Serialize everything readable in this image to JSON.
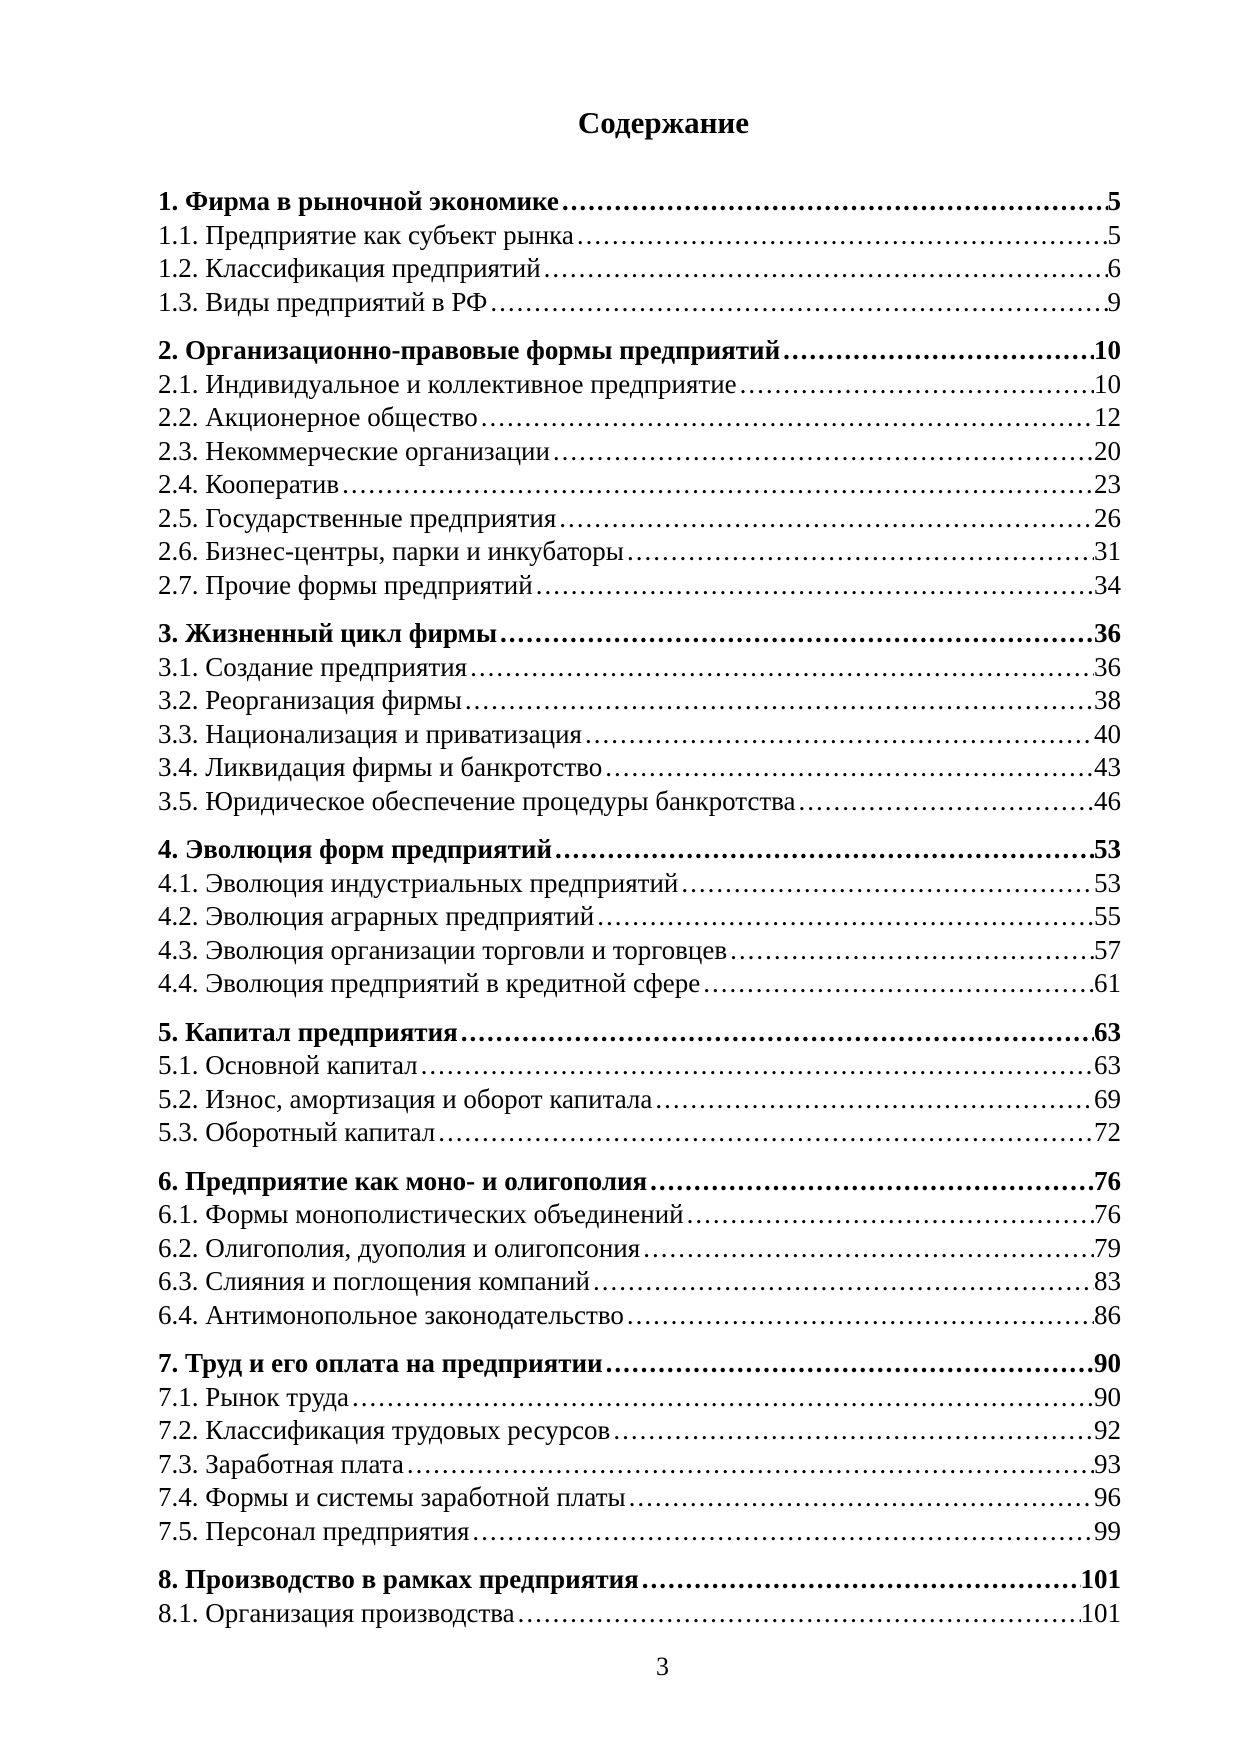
{
  "page": {
    "title": "Содержание",
    "footer_page_number": "3"
  },
  "toc": {
    "sections": [
      {
        "label": "1. Фирма в рыночной экономике",
        "page": "5",
        "items": [
          {
            "label": "1.1. Предприятие как субъект рынка",
            "page": "5"
          },
          {
            "label": "1.2. Классификация предприятий",
            "page": "6"
          },
          {
            "label": "1.3. Виды предприятий в РФ",
            "page": "9"
          }
        ]
      },
      {
        "label": "2. Организационно-правовые формы предприятий",
        "page": "10",
        "items": [
          {
            "label": "2.1. Индивидуальное и коллективное предприятие",
            "page": "10"
          },
          {
            "label": "2.2. Акционерное общество",
            "page": "12"
          },
          {
            "label": "2.3. Некоммерческие организации",
            "page": "20"
          },
          {
            "label": "2.4. Кооператив",
            "page": "23"
          },
          {
            "label": "2.5. Государственные предприятия",
            "page": "26"
          },
          {
            "label": "2.6. Бизнес-центры, парки и инкубаторы",
            "page": "31"
          },
          {
            "label": "2.7. Прочие формы предприятий",
            "page": "34"
          }
        ]
      },
      {
        "label": "3. Жизненный цикл фирмы",
        "page": "36",
        "items": [
          {
            "label": "3.1. Создание предприятия",
            "page": "36"
          },
          {
            "label": "3.2. Реорганизация фирмы",
            "page": "38"
          },
          {
            "label": "3.3. Национализация и приватизация",
            "page": "40"
          },
          {
            "label": "3.4. Ликвидация фирмы и банкротство",
            "page": "43"
          },
          {
            "label": "3.5. Юридическое обеспечение процедуры банкротства",
            "page": "46"
          }
        ]
      },
      {
        "label": "4. Эволюция форм предприятий",
        "page": "53",
        "items": [
          {
            "label": "4.1. Эволюция индустриальных предприятий",
            "page": "53"
          },
          {
            "label": "4.2. Эволюция аграрных предприятий",
            "page": "55"
          },
          {
            "label": "4.3. Эволюция организации торговли и торговцев",
            "page": "57"
          },
          {
            "label": "4.4. Эволюция предприятий в кредитной сфере",
            "page": "61"
          }
        ]
      },
      {
        "label": "5. Капитал предприятия",
        "page": "63",
        "items": [
          {
            "label": "5.1. Основной капитал",
            "page": "63"
          },
          {
            "label": "5.2. Износ, амортизация и оборот капитала",
            "page": "69"
          },
          {
            "label": "5.3. Оборотный капитал",
            "page": "72"
          }
        ]
      },
      {
        "label": "6. Предприятие как моно- и олигополия",
        "page": "76",
        "items": [
          {
            "label": "6.1. Формы монополистических объединений",
            "page": "76"
          },
          {
            "label": "6.2. Олигополия, дуополия и олигопсония",
            "page": "79"
          },
          {
            "label": "6.3. Слияния и поглощения компаний",
            "page": "83"
          },
          {
            "label": "6.4. Антимонопольное законодательство",
            "page": "86"
          }
        ]
      },
      {
        "label": "7. Труд и его оплата на предприятии",
        "page": "90",
        "items": [
          {
            "label": "7.1. Рынок труда",
            "page": "90"
          },
          {
            "label": "7.2. Классификация трудовых ресурсов",
            "page": "92"
          },
          {
            "label": "7.3. Заработная плата",
            "page": "93"
          },
          {
            "label": "7.4. Формы и системы заработной платы",
            "page": "96"
          },
          {
            "label": "7.5. Персонал предприятия",
            "page": "99"
          }
        ]
      },
      {
        "label": "8. Производство в рамках предприятия",
        "page": "101",
        "items": [
          {
            "label": "8.1. Организация производства",
            "page": "101"
          }
        ]
      }
    ]
  }
}
